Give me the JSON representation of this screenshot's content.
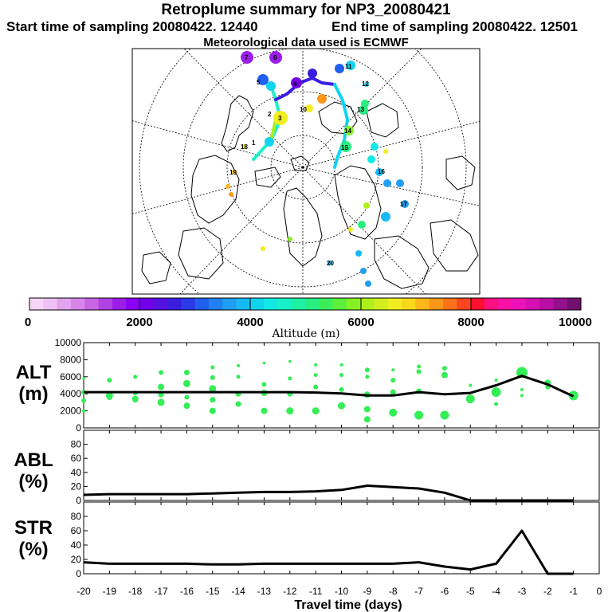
{
  "header": {
    "title": "Retroplume summary for NP3_20080421",
    "start_label": "Start time of sampling 20080422. 12440",
    "end_label": "End time of sampling 20080422. 12501",
    "met_label": "Meteorological data used is ECMWF"
  },
  "colorbar": {
    "ticks": [
      "0",
      "2000",
      "4000",
      "6000",
      "8000",
      "10000"
    ],
    "label": "Altitude (m)",
    "colors": [
      "#f5d5f8",
      "#eebff3",
      "#e3a3ee",
      "#d885ea",
      "#c865e6",
      "#b041e3",
      "#9b1ee8",
      "#8a00f2",
      "#7100e8",
      "#5510e0",
      "#3a1ee0",
      "#2a3ae6",
      "#2060ee",
      "#1f80f2",
      "#209ef4",
      "#16b9f4",
      "#10d4f0",
      "#14e8e6",
      "#18f0c8",
      "#1ef0a4",
      "#28ee80",
      "#3aee5a",
      "#5cf03a",
      "#86f226",
      "#aef01e",
      "#d2ee1e",
      "#f0ee1e",
      "#f8d81c",
      "#fcb81a",
      "#fe961a",
      "#ff721c",
      "#ff4422",
      "#ff1030",
      "#fe1080",
      "#f811a6",
      "#ec11b8",
      "#d410b4",
      "#b80ea4",
      "#96108c",
      "#721070"
    ]
  },
  "map": {
    "day_labels": [
      "7",
      "6",
      "5",
      "4",
      "3",
      "2",
      "1",
      "10",
      "11",
      "12",
      "13",
      "14",
      "15",
      "16",
      "17",
      "18",
      "19",
      "20"
    ]
  },
  "chart_data": [
    {
      "type": "line",
      "panel": "ALT",
      "ylabel_line1": "ALT",
      "ylabel_line2": "(m)",
      "x": [
        -20,
        -19,
        -18,
        -17,
        -16,
        -15,
        -14,
        -13,
        -12,
        -11,
        -10,
        -9,
        -8,
        -7,
        -6,
        -5,
        -4,
        -3,
        -2,
        -1
      ],
      "values": [
        4200,
        4200,
        4200,
        4200,
        4200,
        4200,
        4200,
        4200,
        4200,
        4150,
        4050,
        3800,
        3800,
        4200,
        3950,
        4100,
        5000,
        6100,
        5100,
        3700
      ],
      "ylim": [
        0,
        10000
      ],
      "yticks": [
        "10000",
        "8000",
        "6000",
        "4000",
        "2000",
        "0"
      ],
      "scatter": {
        "color": "#33ee55",
        "x": [
          -20,
          -20,
          -20,
          -20,
          -19,
          -19,
          -19,
          -18,
          -18,
          -18,
          -18,
          -17,
          -17,
          -17,
          -17,
          -16,
          -16,
          -16,
          -16,
          -15,
          -15,
          -15,
          -15,
          -15,
          -14,
          -14,
          -14,
          -14,
          -13,
          -13,
          -13,
          -13,
          -12,
          -12,
          -12,
          -12,
          -11,
          -11,
          -11,
          -11,
          -10,
          -10,
          -10,
          -10,
          -9,
          -9,
          -9,
          -9,
          -9,
          -8,
          -8,
          -8,
          -8,
          -7,
          -7,
          -7,
          -7,
          -6,
          -6,
          -6,
          -5,
          -5,
          -4,
          -4,
          -4,
          -3,
          -3,
          -3,
          -2,
          -2,
          -1
        ],
        "y": [
          5800,
          4200,
          3200,
          2000,
          5600,
          3800,
          3600,
          6000,
          4100,
          3400,
          3300,
          6500,
          4800,
          3900,
          3000,
          6500,
          5200,
          3600,
          2600,
          7100,
          5900,
          4600,
          3300,
          2000,
          7300,
          6000,
          4000,
          2800,
          7600,
          5100,
          4100,
          2000,
          7800,
          5800,
          4000,
          2000,
          7400,
          6200,
          4800,
          2000,
          7400,
          6200,
          4500,
          2600,
          6800,
          6000,
          3900,
          2200,
          1000,
          6800,
          5600,
          4200,
          1800,
          7200,
          6600,
          4300,
          1500,
          7000,
          6200,
          1500,
          5000,
          3400,
          5600,
          4200,
          2800,
          6500,
          4500,
          3800,
          5300,
          4800,
          3800
        ],
        "r": [
          1.8,
          3,
          3,
          2,
          3,
          4.5,
          3.5,
          2.5,
          3,
          4,
          3.5,
          3,
          4,
          3.5,
          4.5,
          3.5,
          4.5,
          3,
          4,
          2.5,
          3,
          4.5,
          3.5,
          4,
          2,
          2.5,
          3.5,
          3.5,
          1.8,
          3,
          4,
          4,
          1.8,
          2.5,
          3.5,
          4.5,
          2,
          2.5,
          3,
          4.5,
          2,
          2.5,
          3,
          4.5,
          3,
          2.5,
          4,
          4,
          4,
          2,
          3,
          3.5,
          5,
          2.5,
          3,
          3.5,
          5.5,
          3,
          4,
          5.5,
          2,
          5.5,
          2,
          6,
          2.5,
          7,
          2,
          2,
          4,
          3,
          6
        ]
      }
    },
    {
      "type": "line",
      "panel": "ABL",
      "ylabel_line1": "ABL",
      "ylabel_line2": "(%)",
      "x": [
        -20,
        -19,
        -18,
        -17,
        -16,
        -15,
        -14,
        -13,
        -12,
        -11,
        -10,
        -9,
        -8,
        -7,
        -6,
        -5,
        -4,
        -3,
        -2,
        -1
      ],
      "values": [
        8,
        9,
        9,
        9,
        9,
        10,
        11,
        12,
        12,
        13,
        15,
        21,
        19,
        17,
        11,
        0,
        0,
        0,
        0,
        0
      ],
      "ylim": [
        0,
        100
      ],
      "yticks": [
        "80",
        "60",
        "40",
        "20",
        "0"
      ]
    },
    {
      "type": "line",
      "panel": "STR",
      "ylabel_line1": "STR",
      "ylabel_line2": "(%)",
      "x": [
        -20,
        -19,
        -18,
        -17,
        -16,
        -15,
        -14,
        -13,
        -12,
        -11,
        -10,
        -9,
        -8,
        -7,
        -6,
        -5,
        -4,
        -3,
        -2,
        -1
      ],
      "values": [
        16,
        14,
        14,
        14,
        14,
        13,
        13,
        14,
        14,
        14,
        14,
        14,
        14,
        16,
        10,
        6,
        14,
        60,
        0,
        0
      ],
      "ylim": [
        0,
        100
      ],
      "yticks": [
        "80",
        "60",
        "40",
        "20",
        "0"
      ],
      "xlabel": "Travel time (days)",
      "xticks": [
        "-20",
        "-19",
        "-18",
        "-17",
        "-16",
        "-15",
        "-14",
        "-13",
        "-12",
        "-11",
        "-10",
        "-9",
        "-8",
        "-7",
        "-6",
        "-5",
        "-4",
        "-3",
        "-2",
        "-1",
        "0"
      ]
    }
  ]
}
